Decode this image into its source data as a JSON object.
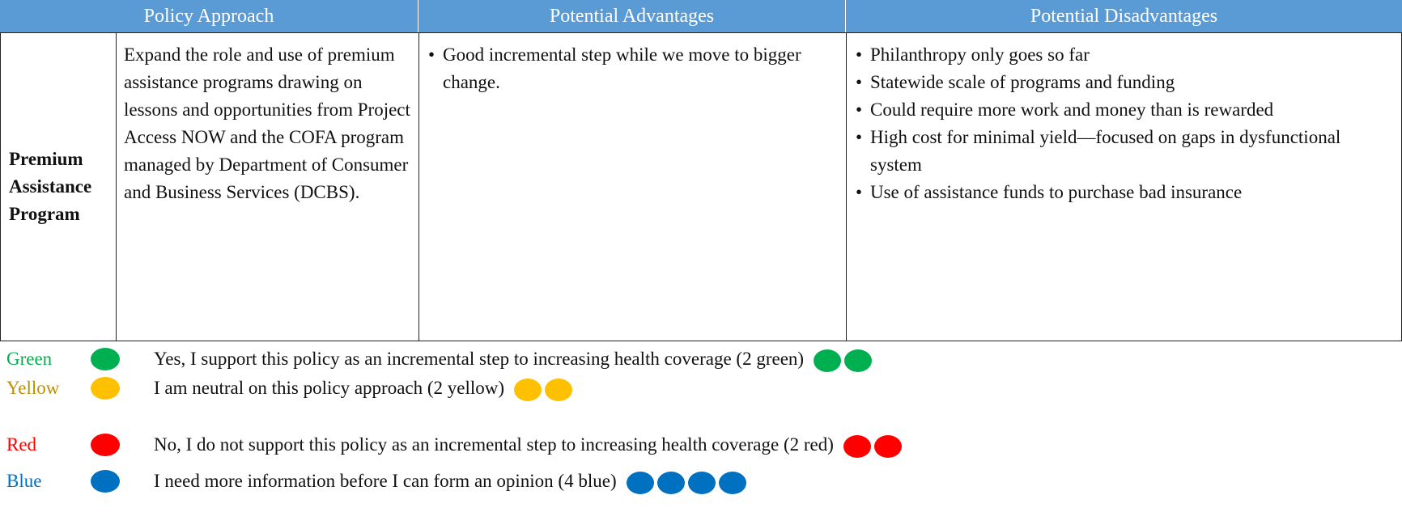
{
  "table": {
    "headers": [
      "Policy Approach",
      "Potential Advantages",
      "Potential Disadvantages"
    ],
    "row": {
      "label": "Premium Assistance Program",
      "description": "Expand the role and use of premium assistance programs drawing on lessons and opportunities from Project Access NOW and the COFA program managed by Department of Consumer and Business Services (DCBS).",
      "advantages": [
        "Good incremental step while we move to bigger change."
      ],
      "disadvantages": [
        "Philanthropy only goes so far",
        "Statewide scale of programs and funding",
        "Could require more work and money than is rewarded",
        "High cost for minimal yield—focused on gaps in dysfunctional system",
        "Use of assistance funds to purchase bad insurance"
      ]
    }
  },
  "legend": [
    {
      "name": "Green",
      "text": "Yes, I support this policy as an incremental step to increasing health coverage (2 green)",
      "dots": 2,
      "color": "#00b050",
      "label_color": "#00b050"
    },
    {
      "name": "Yellow",
      "text": "I am neutral on this policy approach (2 yellow)",
      "dots": 2,
      "color": "#ffc000",
      "label_color": "#bf8f00"
    },
    {
      "name": "Red",
      "text": "No, I do not support this policy as an incremental step to increasing health coverage (2 red)",
      "dots": 2,
      "color": "#ff0000",
      "label_color": "#ff0000"
    },
    {
      "name": "Blue",
      "text": "I need more information before I can form an opinion (4 blue)",
      "dots": 4,
      "color": "#0070c0",
      "label_color": "#0070c0"
    }
  ]
}
